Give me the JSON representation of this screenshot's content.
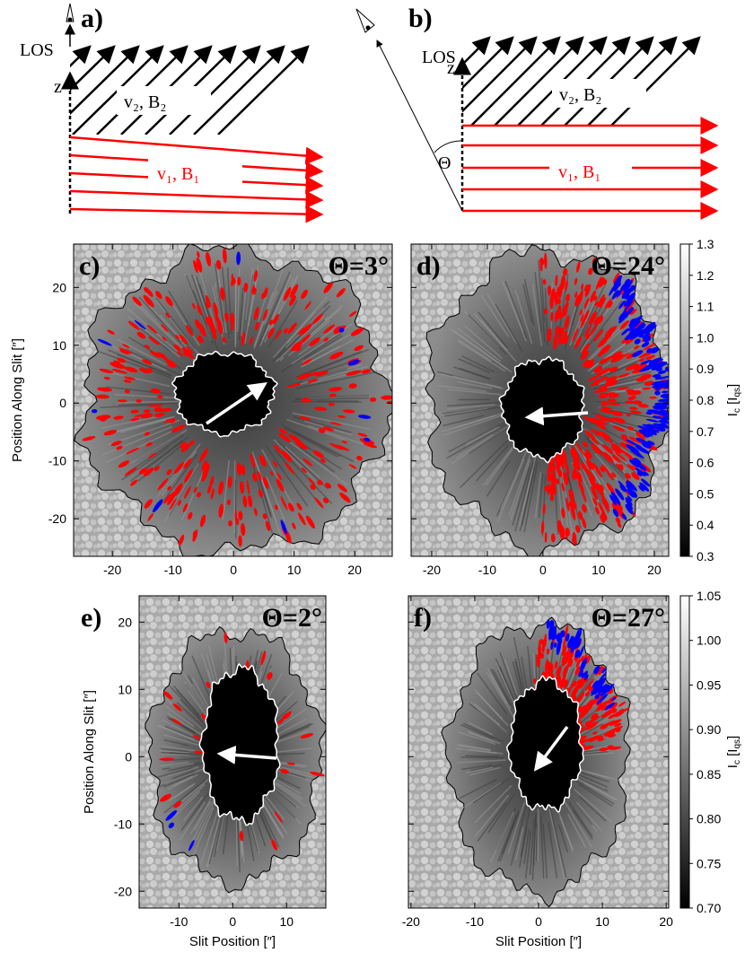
{
  "diagrams": [
    {
      "label": "a)",
      "los": "LOS",
      "z": "z",
      "upper": "v₂, B₂",
      "lower": "v₁, B₁"
    },
    {
      "label": "b)",
      "los": "LOS",
      "z": "z",
      "upper": "v₂, B₂",
      "lower": "v₁, B₁",
      "angle": "Θ"
    }
  ],
  "chart_data": [
    {
      "type": "image",
      "panel_label": "c)",
      "annotation": "Θ=3°",
      "xlim": [
        -26.4,
        26.2
      ],
      "xticks": [
        -20,
        -10,
        0,
        10,
        20
      ],
      "ylim": [
        -26.5,
        27.5
      ],
      "yticks": [
        -20,
        -10,
        0,
        10,
        20
      ],
      "ytick_labels": true,
      "ylabel": "Position Along Slit [″]"
    },
    {
      "type": "image",
      "panel_label": "d)",
      "annotation": "Θ=24°",
      "xlim": [
        -23.7,
        22.6
      ],
      "xticks": [
        -20,
        -10,
        0,
        10,
        20
      ],
      "ylim": [
        -26.5,
        27.5
      ],
      "yticks": [
        -20,
        -10,
        0,
        10,
        20
      ],
      "ytick_labels": false,
      "colorbar": {
        "lim": [
          0.3,
          1.3
        ],
        "ticks": [
          0.3,
          0.4,
          0.5,
          0.6,
          0.7,
          0.8,
          0.9,
          {
            "value": 1.0,
            "label": "1.0"
          },
          1.1,
          1.2,
          1.3
        ],
        "label": [
          "I",
          "c",
          " [I",
          "qs",
          "]"
        ]
      }
    },
    {
      "type": "image",
      "panel_label": "e)",
      "annotation": "Θ=2°",
      "xlim": [
        -17.4,
        17.3
      ],
      "xticks": [
        -10,
        0,
        10
      ],
      "ylim": [
        -22.5,
        23.9
      ],
      "yticks": [
        -20,
        -10,
        0,
        10,
        20
      ],
      "ytick_labels": true,
      "ylabel": "Position Along Slit [″]",
      "xlabel": "Slit Position [″]"
    },
    {
      "type": "image",
      "panel_label": "f)",
      "annotation": "Θ=27°",
      "xlim": [
        -20.4,
        20.4
      ],
      "xticks": [
        -20,
        -10,
        0,
        10,
        20
      ],
      "ylim": [
        -22.5,
        23.9
      ],
      "yticks": [
        -20,
        -10,
        0,
        10,
        20
      ],
      "ytick_labels": false,
      "xlabel": "Slit Position [″]",
      "colorbar": {
        "lim": [
          0.7,
          1.05
        ],
        "ticks": [
          {
            "value": 0.7,
            "label": "0.70"
          },
          0.75,
          {
            "value": 0.8,
            "label": "0.80"
          },
          0.85,
          {
            "value": 0.9,
            "label": "0.90"
          },
          0.95,
          {
            "value": 1.0,
            "label": "1.00"
          },
          1.05
        ],
        "label": [
          "I",
          "c",
          " [I",
          "qs",
          "]"
        ]
      }
    }
  ]
}
